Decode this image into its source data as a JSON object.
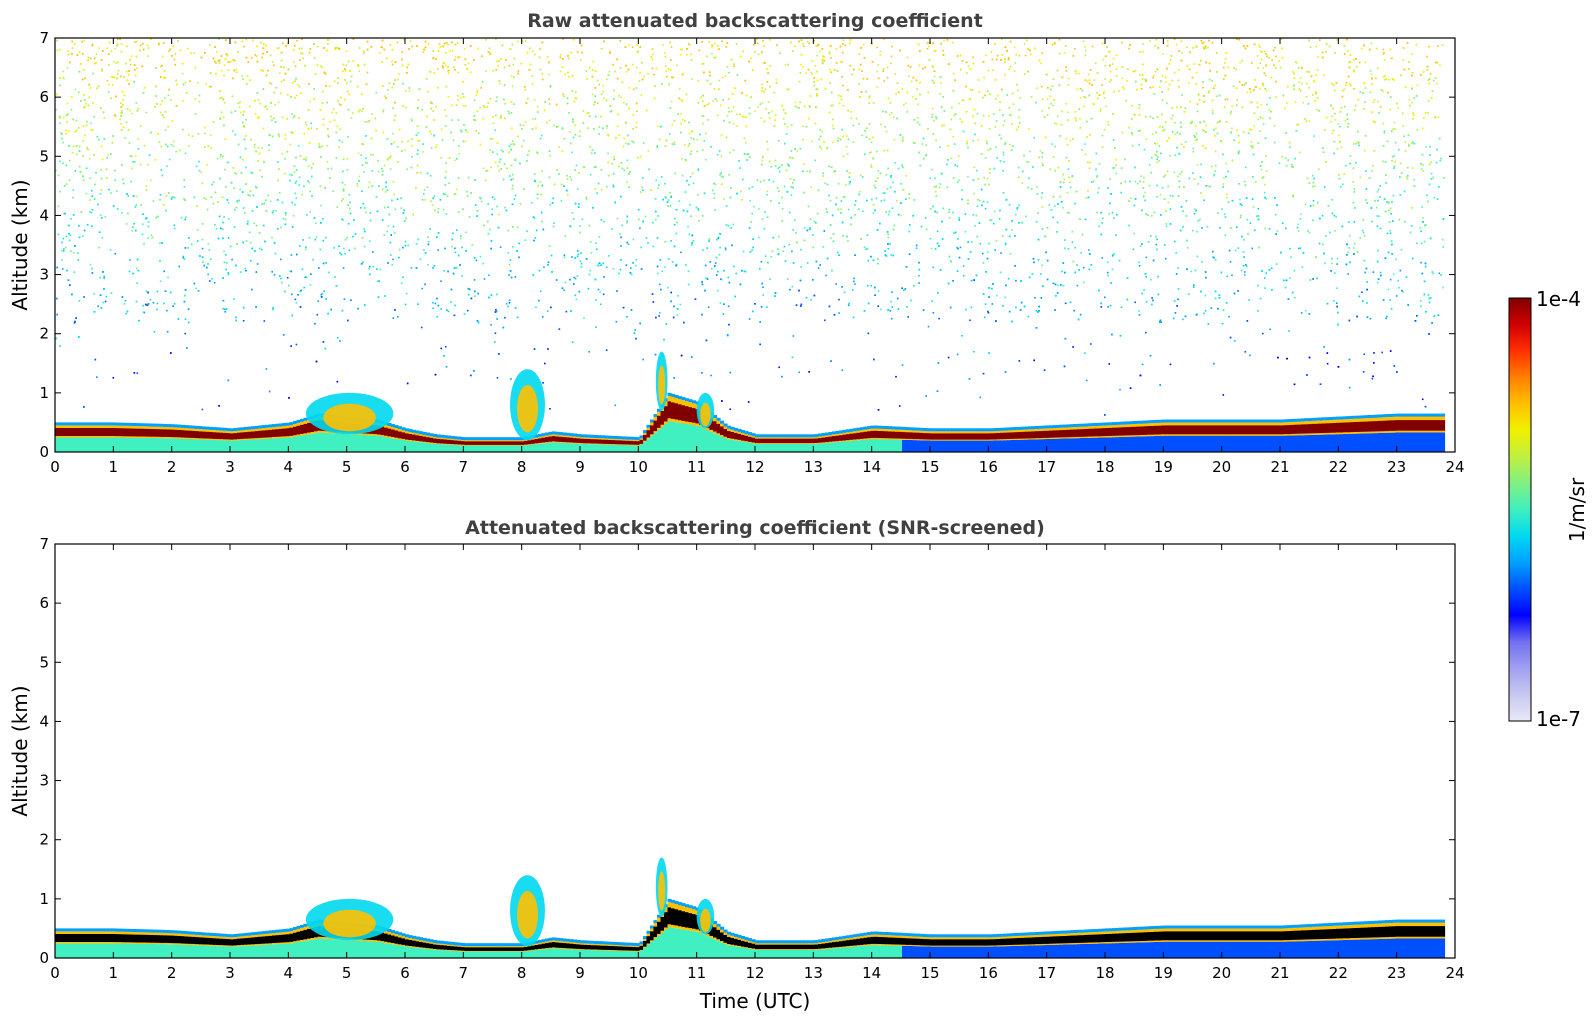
{
  "colorbar": {
    "max_label": "1e-4",
    "min_label": "1e-7",
    "unit_label": "1/m/sr",
    "colors": [
      "#e8e8f8",
      "#c8c8f0",
      "#a0a0f0",
      "#7070f0",
      "#0000ff",
      "#0050ff",
      "#00a0ff",
      "#00d8f0",
      "#40f0c0",
      "#80f080",
      "#c0f040",
      "#f0f000",
      "#ffc000",
      "#ff8000",
      "#ff3000",
      "#d00000",
      "#800000"
    ]
  },
  "x_ticks": [
    "0",
    "1",
    "2",
    "3",
    "4",
    "5",
    "6",
    "7",
    "8",
    "9",
    "10",
    "11",
    "12",
    "13",
    "14",
    "15",
    "16",
    "17",
    "18",
    "19",
    "20",
    "21",
    "22",
    "23",
    "24"
  ],
  "y_ticks": [
    "0",
    "1",
    "2",
    "3",
    "4",
    "5",
    "6",
    "7"
  ],
  "chart_data": [
    {
      "type": "heatmap",
      "title": "Raw attenuated backscattering coefficient",
      "xlabel": "",
      "ylabel": "Altitude (km)",
      "xlim": [
        0,
        24
      ],
      "ylim": [
        0,
        7
      ],
      "colorscale": "log",
      "clim": [
        1e-07,
        0.0001
      ],
      "boundary_layer_top_km": {
        "time_h": [
          0,
          1,
          2,
          3,
          4,
          4.5,
          5,
          5.5,
          6,
          6.5,
          7,
          7.5,
          8,
          8.5,
          9,
          10,
          10.5,
          11,
          11.5,
          12,
          13,
          14,
          15,
          16,
          17,
          18,
          19,
          20,
          21,
          22,
          23,
          23.8
        ],
        "altitude_km": [
          0.45,
          0.45,
          0.42,
          0.35,
          0.45,
          0.6,
          0.55,
          0.5,
          0.35,
          0.25,
          0.2,
          0.2,
          0.2,
          0.3,
          0.25,
          0.2,
          0.95,
          0.8,
          0.4,
          0.25,
          0.25,
          0.4,
          0.35,
          0.35,
          0.4,
          0.45,
          0.5,
          0.5,
          0.5,
          0.55,
          0.6,
          0.6
        ]
      },
      "aerosol_plumes": [
        {
          "time_h": [
            4.3,
            5.8
          ],
          "altitude_km": [
            0.3,
            1.0
          ]
        },
        {
          "time_h": [
            7.8,
            8.4
          ],
          "altitude_km": [
            0.2,
            1.4
          ]
        },
        {
          "time_h": [
            10.3,
            10.5
          ],
          "altitude_km": [
            0.7,
            1.7
          ]
        },
        {
          "time_h": [
            11.0,
            11.3
          ],
          "altitude_km": [
            0.4,
            1.0
          ]
        }
      ]
    },
    {
      "type": "heatmap",
      "title": "Attenuated backscattering coefficient (SNR-screened)",
      "xlabel": "Time (UTC)",
      "ylabel": "Altitude (km)",
      "xlim": [
        0,
        24
      ],
      "ylim": [
        0,
        7
      ],
      "colorscale": "log",
      "clim": [
        1e-07,
        0.0001
      ]
    }
  ]
}
